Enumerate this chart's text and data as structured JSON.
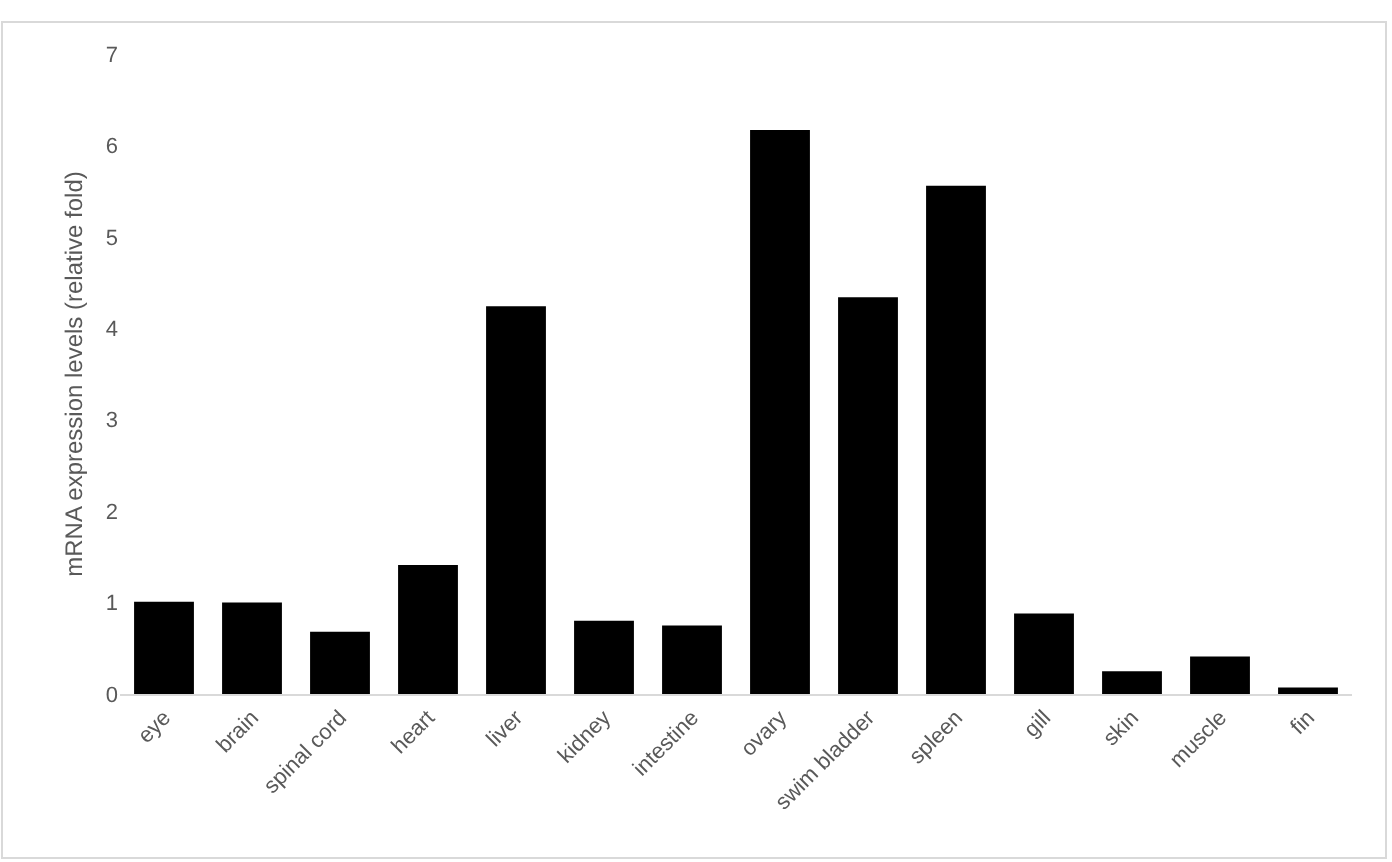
{
  "chart_data": {
    "type": "bar",
    "ylabel": "mRNA expression levels (relative fold)",
    "categories": [
      "eye",
      "brain",
      "spinal cord",
      "heart",
      "liver",
      "kidney",
      "intestine",
      "ovary",
      "swim bladder",
      "spleen",
      "gill",
      "skin",
      "muscle",
      "fin"
    ],
    "values": [
      1.01,
      1.0,
      0.68,
      1.41,
      4.24,
      0.8,
      0.75,
      6.17,
      4.34,
      5.56,
      0.88,
      0.25,
      0.41,
      0.07
    ],
    "color": "#000000",
    "ylim": [
      0,
      7
    ],
    "yticks": [
      0,
      1,
      2,
      3,
      4,
      5,
      6,
      7
    ],
    "grid": false
  }
}
